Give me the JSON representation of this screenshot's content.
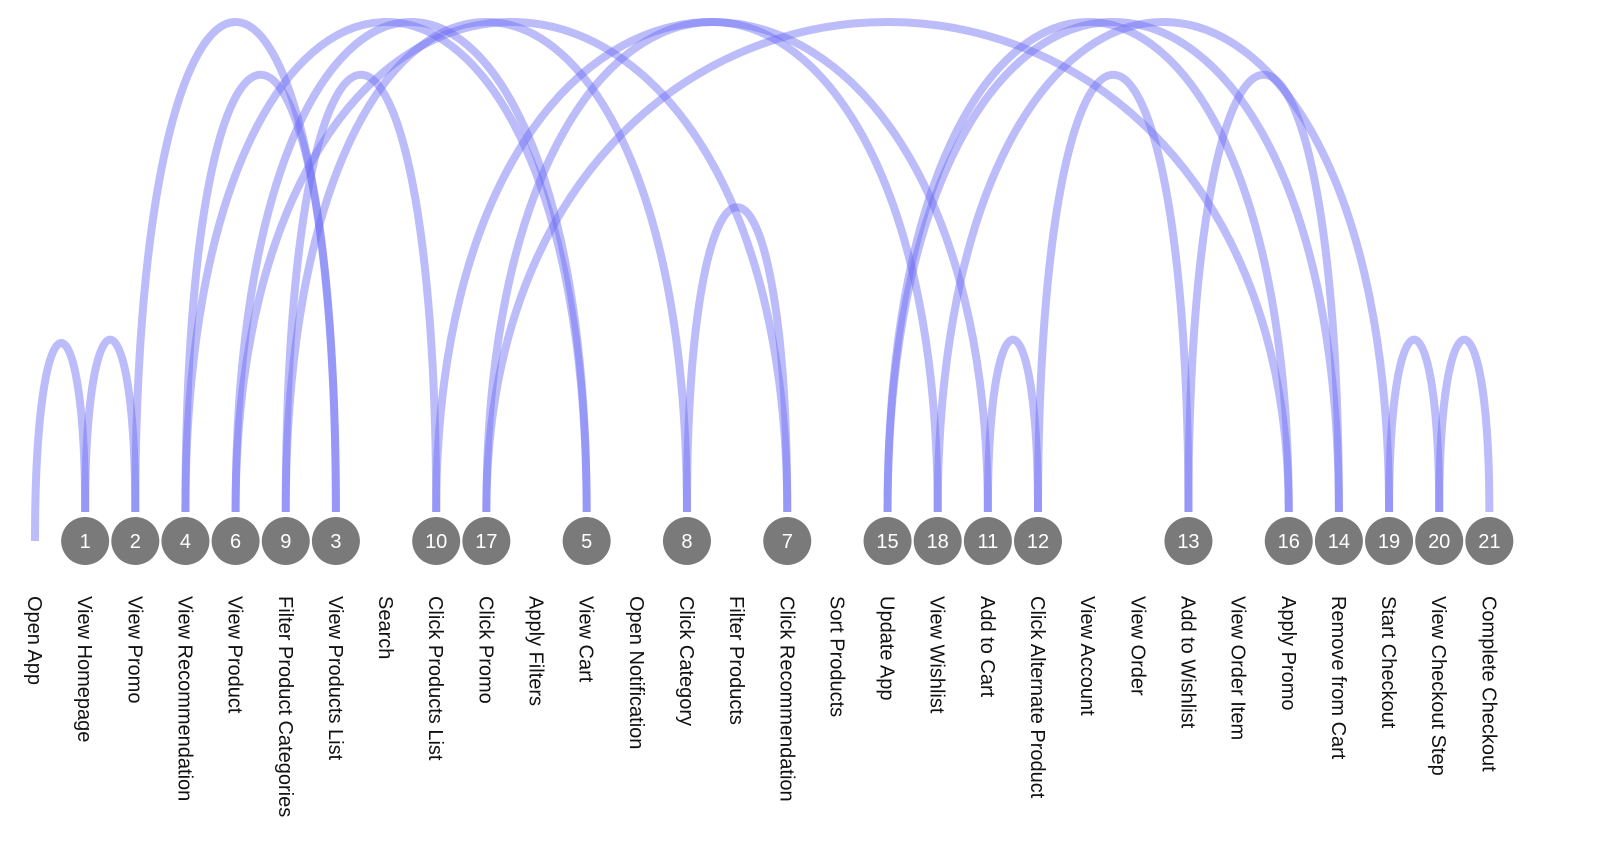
{
  "steps": [
    {
      "label": "Open App",
      "order": ""
    },
    {
      "label": "View Homepage",
      "order": "1"
    },
    {
      "label": "View Promo",
      "order": "2"
    },
    {
      "label": "View Recommendation",
      "order": "4"
    },
    {
      "label": "View Product",
      "order": "6"
    },
    {
      "label": "Filter Product Categories",
      "order": "9"
    },
    {
      "label": "View Products List",
      "order": "3"
    },
    {
      "label": "Search",
      "order": ""
    },
    {
      "label": "Click Products List",
      "order": "10"
    },
    {
      "label": "Click Promo",
      "order": "17"
    },
    {
      "label": "Apply Filters",
      "order": ""
    },
    {
      "label": "View Cart",
      "order": "5"
    },
    {
      "label": "Open Notification",
      "order": ""
    },
    {
      "label": "Click Category",
      "order": "8"
    },
    {
      "label": "Filter Products",
      "order": ""
    },
    {
      "label": "Click Recommendation",
      "order": "7"
    },
    {
      "label": "Sort Products",
      "order": ""
    },
    {
      "label": "Update App",
      "order": "15"
    },
    {
      "label": "View Wishlist",
      "order": "18"
    },
    {
      "label": "Add to Cart",
      "order": "11"
    },
    {
      "label": "Click Alternate Product",
      "order": "12"
    },
    {
      "label": "View Account",
      "order": ""
    },
    {
      "label": "View Order",
      "order": ""
    },
    {
      "label": "Add to Wishlist",
      "order": "13"
    },
    {
      "label": "View Order Item",
      "order": ""
    },
    {
      "label": "Apply Promo",
      "order": "16"
    },
    {
      "label": "Remove from Cart",
      "order": "14"
    },
    {
      "label": "Start Checkout",
      "order": "19"
    },
    {
      "label": "View Checkout Step",
      "order": "20"
    },
    {
      "label": "Complete Checkout",
      "order": "21"
    }
  ],
  "path": [
    "Open App",
    "View Homepage",
    "View Promo",
    "View Products List",
    "View Recommendation",
    "View Cart",
    "View Product",
    "Click Recommendation",
    "Click Category",
    "Filter Product Categories",
    "Click Products List",
    "Add to Cart",
    "Click Alternate Product",
    "Add to Wishlist",
    "Remove from Cart",
    "Update App",
    "Apply Promo",
    "Click Promo",
    "View Wishlist",
    "Start Checkout",
    "View Checkout Step",
    "Complete Checkout"
  ],
  "colors": {
    "arc": "#6b6bf5",
    "node": "#7a7a7a",
    "node_text": "#ffffff",
    "label_text": "#111111"
  }
}
